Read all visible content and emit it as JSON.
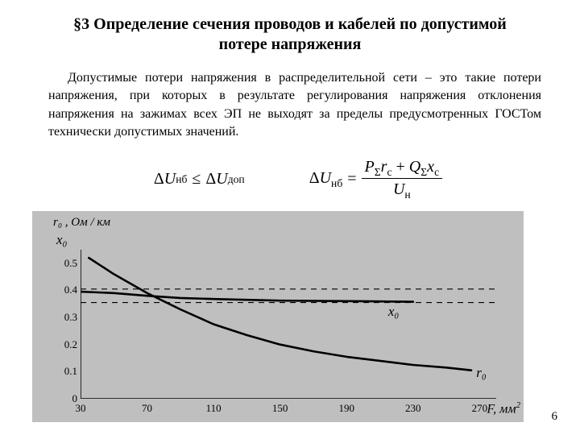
{
  "title": "§3 Определение сечения проводов и кабелей по допустимой потере напряжения",
  "paragraph": "Допустимые потери напряжения в распределительной сети – это такие потери напряжения, при которых в результате регулирования напряжения  отклонения напряжения на зажимах всех ЭП не выходят за пределы предусмотренных ГОСТом технически допустимых значений.",
  "formula1": {
    "lhs_delta": "Δ",
    "lhs_U": "U",
    "lhs_sub": "нб",
    "op": "≤",
    "rhs_delta": "Δ",
    "rhs_U": "U",
    "rhs_sub": "доп"
  },
  "formula2": {
    "lhs_delta": "Δ",
    "lhs_U": "U",
    "lhs_sub": "нб",
    "eq": "=",
    "num": {
      "P": "P",
      "Psub": "Σ",
      "r": "r",
      "rsub": "c",
      "plus": " + ",
      "Q": "Q",
      "Qsub": "Σ",
      "x": "x",
      "xsub": "c"
    },
    "den": {
      "U": "U",
      "Usub": "н"
    }
  },
  "chart": {
    "type": "line",
    "background_color": "#bfbfbf",
    "axis_color": "#000000",
    "grid_border": "#000000",
    "y_title_line1": "r₀ , Ом / км",
    "y_title_line2": "x₀",
    "x_title_F": "F",
    "x_title_unit": ", мм",
    "x_title_sup": "2",
    "xlim": [
      30,
      280
    ],
    "ylim": [
      0,
      0.55
    ],
    "y_ticks": [
      {
        "v": 0,
        "label": "0"
      },
      {
        "v": 0.1,
        "label": "0.1"
      },
      {
        "v": 0.2,
        "label": "0.2"
      },
      {
        "v": 0.3,
        "label": "0.3"
      },
      {
        "v": 0.4,
        "label": "0.4"
      },
      {
        "v": 0.5,
        "label": "0.5"
      }
    ],
    "x_ticks": [
      {
        "v": 30,
        "label": "30"
      },
      {
        "v": 70,
        "label": "70"
      },
      {
        "v": 110,
        "label": "110"
      },
      {
        "v": 150,
        "label": "150"
      },
      {
        "v": 190,
        "label": "190"
      },
      {
        "v": 230,
        "label": "230"
      },
      {
        "v": 270,
        "label": "270"
      }
    ],
    "h_dashed": [
      0.405,
      0.355
    ],
    "series_r0": {
      "label": "r₀",
      "stroke": "#000000",
      "width": 2.6,
      "points": [
        {
          "x": 35,
          "y": 0.52
        },
        {
          "x": 50,
          "y": 0.46
        },
        {
          "x": 70,
          "y": 0.39
        },
        {
          "x": 90,
          "y": 0.33
        },
        {
          "x": 110,
          "y": 0.275
        },
        {
          "x": 130,
          "y": 0.235
        },
        {
          "x": 150,
          "y": 0.2
        },
        {
          "x": 170,
          "y": 0.175
        },
        {
          "x": 190,
          "y": 0.155
        },
        {
          "x": 210,
          "y": 0.14
        },
        {
          "x": 230,
          "y": 0.125
        },
        {
          "x": 250,
          "y": 0.115
        },
        {
          "x": 265,
          "y": 0.105
        }
      ],
      "label_pos": {
        "x": 268,
        "y": 0.095
      }
    },
    "series_x0": {
      "label": "x₀",
      "stroke": "#000000",
      "width": 2.6,
      "points": [
        {
          "x": 30,
          "y": 0.395
        },
        {
          "x": 50,
          "y": 0.39
        },
        {
          "x": 70,
          "y": 0.38
        },
        {
          "x": 90,
          "y": 0.372
        },
        {
          "x": 110,
          "y": 0.368
        },
        {
          "x": 150,
          "y": 0.362
        },
        {
          "x": 200,
          "y": 0.36
        },
        {
          "x": 230,
          "y": 0.358
        }
      ],
      "label_pos": {
        "x": 215,
        "y": 0.325
      }
    }
  },
  "page_number": "6"
}
